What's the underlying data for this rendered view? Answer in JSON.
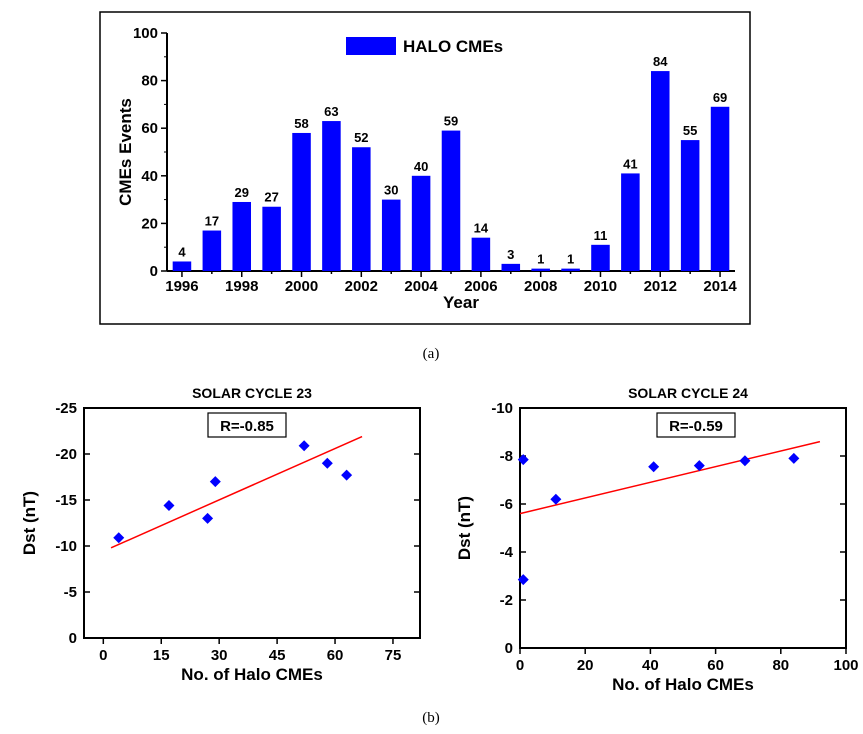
{
  "captions": {
    "a": "(a)",
    "b": "(b)"
  },
  "chart_data": [
    {
      "type": "bar",
      "title": "",
      "xlabel": "Year",
      "ylabel": "CMEs Events",
      "ylim": [
        0,
        100
      ],
      "yticks": [
        0,
        20,
        40,
        60,
        80,
        100
      ],
      "xticks": [
        "1996",
        "1998",
        "2000",
        "2002",
        "2004",
        "2006",
        "2008",
        "2010",
        "2012",
        "2014"
      ],
      "categories": [
        "1996",
        "1997",
        "1998",
        "1999",
        "2000",
        "2001",
        "2002",
        "2003",
        "2004",
        "2005",
        "2006",
        "2007",
        "2008",
        "2009",
        "2010",
        "2011",
        "2012",
        "2013",
        "2014"
      ],
      "series": [
        {
          "name": "HALO CMEs",
          "values": [
            4,
            17,
            29,
            27,
            58,
            63,
            52,
            30,
            40,
            59,
            14,
            3,
            1,
            1,
            11,
            41,
            84,
            55,
            69
          ]
        }
      ],
      "data_labels": [
        "4",
        "17",
        "29",
        "27",
        "58",
        "63",
        "52",
        "30",
        "40",
        "59",
        "14",
        "3",
        "1",
        "1",
        "11",
        "41",
        "84",
        "55",
        "69"
      ],
      "legend": "top-center",
      "color": "#0000ff"
    },
    {
      "type": "scatter",
      "title": "SOLAR CYCLE 23",
      "xlabel": "No. of Halo CMEs",
      "ylabel": "Dst (nT)",
      "xlim": [
        -5,
        82
      ],
      "ylim": [
        0,
        -25
      ],
      "xticks": [
        "0",
        "15",
        "30",
        "45",
        "60",
        "75"
      ],
      "yticks": [
        "0",
        "-5",
        "-10",
        "-15",
        "-20",
        "-25"
      ],
      "annotation": "R=-0.85",
      "points": [
        {
          "x": 4,
          "y": -10.9
        },
        {
          "x": 17,
          "y": -14.4
        },
        {
          "x": 27,
          "y": -13.0
        },
        {
          "x": 29,
          "y": -17.0
        },
        {
          "x": 52,
          "y": -20.9
        },
        {
          "x": 58,
          "y": -19.0
        },
        {
          "x": 63,
          "y": -17.7
        }
      ],
      "fit": {
        "x": [
          2,
          67
        ],
        "y": [
          -9.8,
          -21.9
        ]
      },
      "point_color": "#0000ff",
      "fit_color": "#ff0000"
    },
    {
      "type": "scatter",
      "title": "SOLAR CYCLE 24",
      "xlabel": "No. of Halo CMEs",
      "ylabel": "Dst (nT)",
      "xlim": [
        0,
        100
      ],
      "ylim": [
        0,
        -10
      ],
      "xticks": [
        "0",
        "20",
        "40",
        "60",
        "80",
        "100"
      ],
      "yticks": [
        "0",
        "-2",
        "-4",
        "-6",
        "-8",
        "-10"
      ],
      "annotation": "R=-0.59",
      "points": [
        {
          "x": 1,
          "y": -7.85
        },
        {
          "x": 1,
          "y": -2.85
        },
        {
          "x": 11,
          "y": -6.2
        },
        {
          "x": 41,
          "y": -7.55
        },
        {
          "x": 55,
          "y": -7.6
        },
        {
          "x": 69,
          "y": -7.8
        },
        {
          "x": 84,
          "y": -7.9
        }
      ],
      "fit": {
        "x": [
          0,
          92
        ],
        "y": [
          -5.6,
          -8.6
        ]
      },
      "point_color": "#0000ff",
      "fit_color": "#ff0000"
    }
  ]
}
